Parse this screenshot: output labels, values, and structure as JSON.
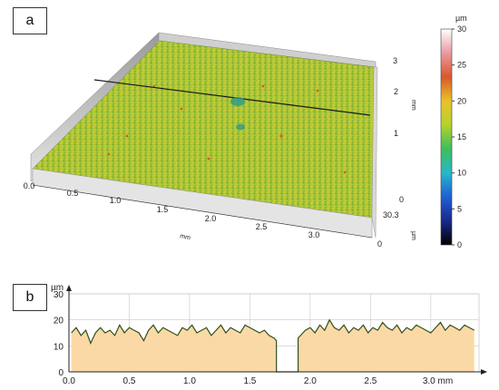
{
  "panel_a": {
    "label": "a",
    "x_unit": "mm",
    "y_unit": "mm",
    "z_unit": "µm",
    "x_ticks": [
      "0.0",
      "0.5",
      "1.0",
      "1.5",
      "2.0",
      "2.5",
      "3.0"
    ],
    "y_ticks": [
      "0",
      "1",
      "2",
      "3"
    ],
    "z_ticks": [
      "0",
      "30.3"
    ],
    "colorbar": {
      "unit": "µm",
      "ticks": [
        "0",
        "5",
        "10",
        "15",
        "20",
        "25",
        "30"
      ],
      "range": [
        0,
        30
      ],
      "colors": [
        "#000000",
        "#1a2a8a",
        "#1f5fd6",
        "#28b7c9",
        "#3cbf5a",
        "#b6d22b",
        "#e9c22a",
        "#d9572a",
        "#e99aa0",
        "#ffffff"
      ]
    }
  },
  "panel_b": {
    "label": "b"
  },
  "chart_data": {
    "type": "area",
    "ylabel": "µm",
    "xlabel": "",
    "ylim": [
      0,
      30
    ],
    "xlim": [
      0,
      3.4
    ],
    "y_ticks": [
      "0",
      "10",
      "20",
      "30"
    ],
    "x_ticks": [
      "0.0",
      "0.5",
      "1.0",
      "1.5",
      "2.0",
      "2.5",
      "3.0 mm"
    ],
    "fill_color": "#fbd9a6",
    "line_color": "#2f4f1c",
    "series": [
      {
        "x": [
          0.02,
          0.06,
          0.1,
          0.14,
          0.18,
          0.22,
          0.26,
          0.3,
          0.34,
          0.38,
          0.42,
          0.46,
          0.5,
          0.54,
          0.58,
          0.62,
          0.66,
          0.7,
          0.74,
          0.78,
          0.82,
          0.86,
          0.9,
          0.94,
          0.98,
          1.02,
          1.06,
          1.1,
          1.14,
          1.18,
          1.22,
          1.26,
          1.3,
          1.34,
          1.38,
          1.42,
          1.46,
          1.5,
          1.54,
          1.58,
          1.62,
          1.66,
          1.7,
          1.72,
          1.72,
          1.9,
          1.9,
          1.92,
          1.96,
          2.0,
          2.04,
          2.08,
          2.12,
          2.16,
          2.2,
          2.24,
          2.28,
          2.32,
          2.36,
          2.4,
          2.44,
          2.48,
          2.52,
          2.56,
          2.6,
          2.64,
          2.68,
          2.72,
          2.76,
          2.8,
          2.84,
          2.88,
          2.92,
          2.96,
          3.0,
          3.04,
          3.08,
          3.12,
          3.16,
          3.2,
          3.24,
          3.28,
          3.32,
          3.36
        ],
        "y": [
          15,
          17,
          14,
          16,
          11,
          15,
          17,
          15,
          16,
          14,
          18,
          15,
          17,
          16,
          15,
          12,
          16,
          18,
          15,
          17,
          16,
          15,
          14,
          17,
          16,
          18,
          15,
          16,
          17,
          14,
          16,
          18,
          15,
          17,
          16,
          15,
          18,
          17,
          16,
          15,
          16,
          14,
          13,
          12,
          0,
          0,
          13,
          14,
          16,
          17,
          15,
          18,
          16,
          20,
          17,
          16,
          18,
          15,
          17,
          16,
          18,
          15,
          17,
          16,
          19,
          17,
          16,
          18,
          15,
          17,
          16,
          18,
          17,
          16,
          15,
          17,
          19,
          16,
          18,
          17,
          16,
          18,
          17,
          16
        ]
      }
    ]
  }
}
